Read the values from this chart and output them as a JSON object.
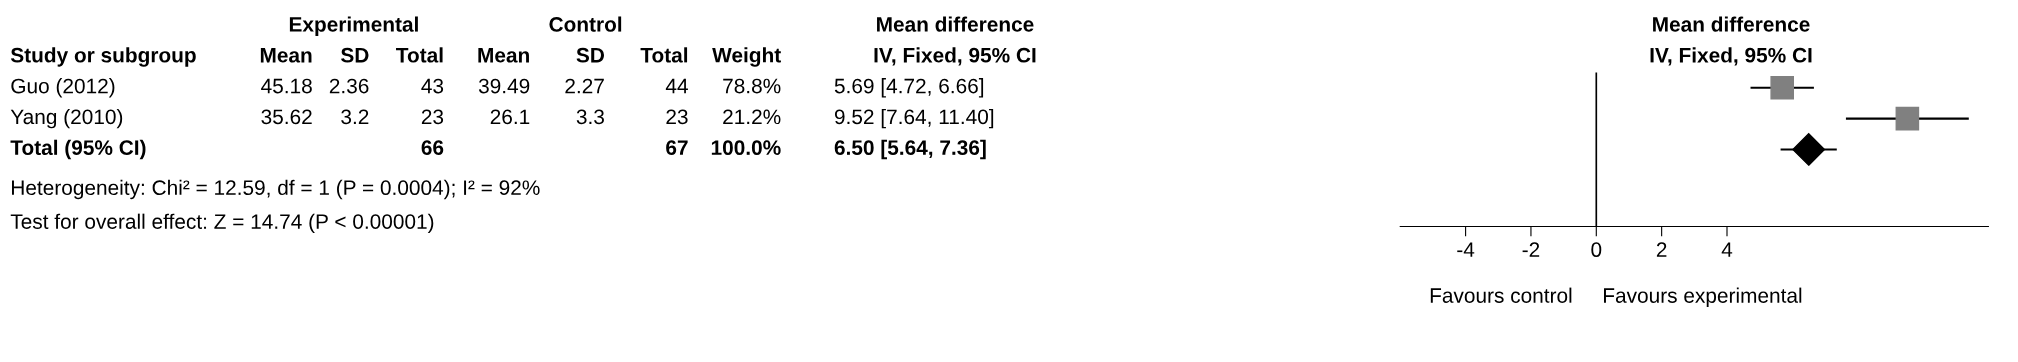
{
  "chart_data": [
    {
      "type": "other",
      "categories": [
        "Study or subgroup",
        "Mean",
        "SD",
        "Total",
        "Mean",
        "SD",
        "Total",
        "Weight",
        "IV, Fixed, 95% CI"
      ],
      "y_categories": [
        "Guo (2012)",
        "Yang (2010)",
        "Total (95% CI)"
      ],
      "cell_labels": [
        [
          "45.18",
          "2.36",
          "43",
          "39.49",
          "2.27",
          "44",
          "78.8%",
          "5.69 [4.72, 6.66]"
        ],
        [
          "35.62",
          "3.2",
          "23",
          "26.1",
          "3.3",
          "23",
          "21.2%",
          "9.52 [7.64, 11.40]"
        ],
        [
          null,
          null,
          "66",
          null,
          null,
          "67",
          "100.0%",
          "6.50 [5.64, 7.36]"
        ]
      ],
      "annotations": [
        "Experimental",
        "Control",
        "Mean difference",
        "Heterogeneity: Chi² = 12.59, df = 1 (P = 0.0004); I² = 92%",
        "Test for overall effect: Z = 14.74 (P < 0.00001)"
      ]
    },
    {
      "type": "scatter",
      "title": "Mean difference",
      "subtitle": "IV, Fixed, 95% CI",
      "orientation": "horizontal",
      "categories": [
        null,
        null,
        null,
        null,
        null
      ],
      "series": [
        {
          "color": "#808080",
          "marker": "square",
          "values": [
            5.69,
            9.52,
            null,
            null,
            null
          ],
          "errors": [
            [
              4.72,
              6.66
            ],
            [
              7.64,
              11.4
            ],
            null,
            null,
            null
          ]
        },
        {
          "color": "#000000",
          "marker": "diamond",
          "values": [
            null,
            null,
            6.5,
            null,
            null
          ],
          "errors": [
            null,
            null,
            [
              5.64,
              7.36
            ],
            null,
            null
          ]
        }
      ],
      "xlim": [
        -6,
        12
      ],
      "xticks": [
        -4,
        -2,
        0,
        2,
        4
      ],
      "ref_lines": [
        {
          "axis": "x",
          "value": 0,
          "color": "#000000"
        }
      ],
      "tick_labels": "x",
      "grid": false,
      "legend": false,
      "annotations": [
        "Favours control",
        "Favours experimental"
      ]
    }
  ]
}
